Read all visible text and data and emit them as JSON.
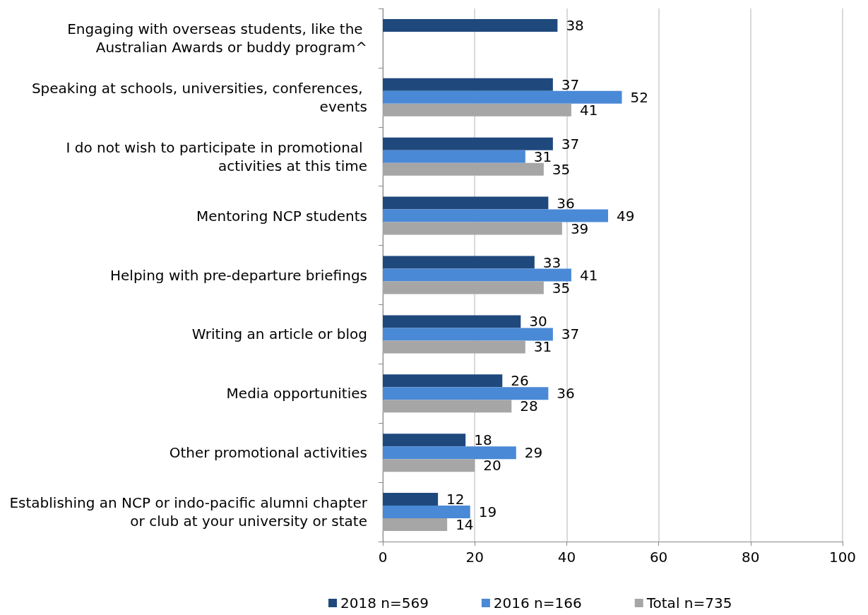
{
  "chart_data": {
    "type": "bar",
    "orientation": "horizontal",
    "categories": [
      "Engaging with overseas students, like the Australian Awards or buddy program^",
      "Speaking at schools, universities, conferences, events",
      "I do not wish to participate in promotional activities at this time",
      "Mentoring NCP students",
      "Helping with pre-departure briefings",
      "Writing an article or blog",
      "Media opportunities",
      "Other promotional activities",
      "Establishing an NCP or indo-pacific alumni chapter or club at your university or state"
    ],
    "series": [
      {
        "name": "2018 n=569",
        "color": "#1f497d",
        "values": [
          38,
          37,
          37,
          36,
          33,
          30,
          26,
          18,
          12
        ]
      },
      {
        "name": "2016 n=166",
        "color": "#4a89d6",
        "values": [
          null,
          52,
          31,
          49,
          41,
          37,
          36,
          29,
          19
        ]
      },
      {
        "name": "Total n=735",
        "color": "#a6a6a6",
        "values": [
          null,
          41,
          35,
          39,
          35,
          31,
          28,
          20,
          14
        ]
      }
    ],
    "xlim": [
      0,
      100
    ],
    "xticks": [
      0,
      20,
      40,
      60,
      80,
      100
    ],
    "grid": "x",
    "legend": "bottom",
    "data_labels": true
  }
}
